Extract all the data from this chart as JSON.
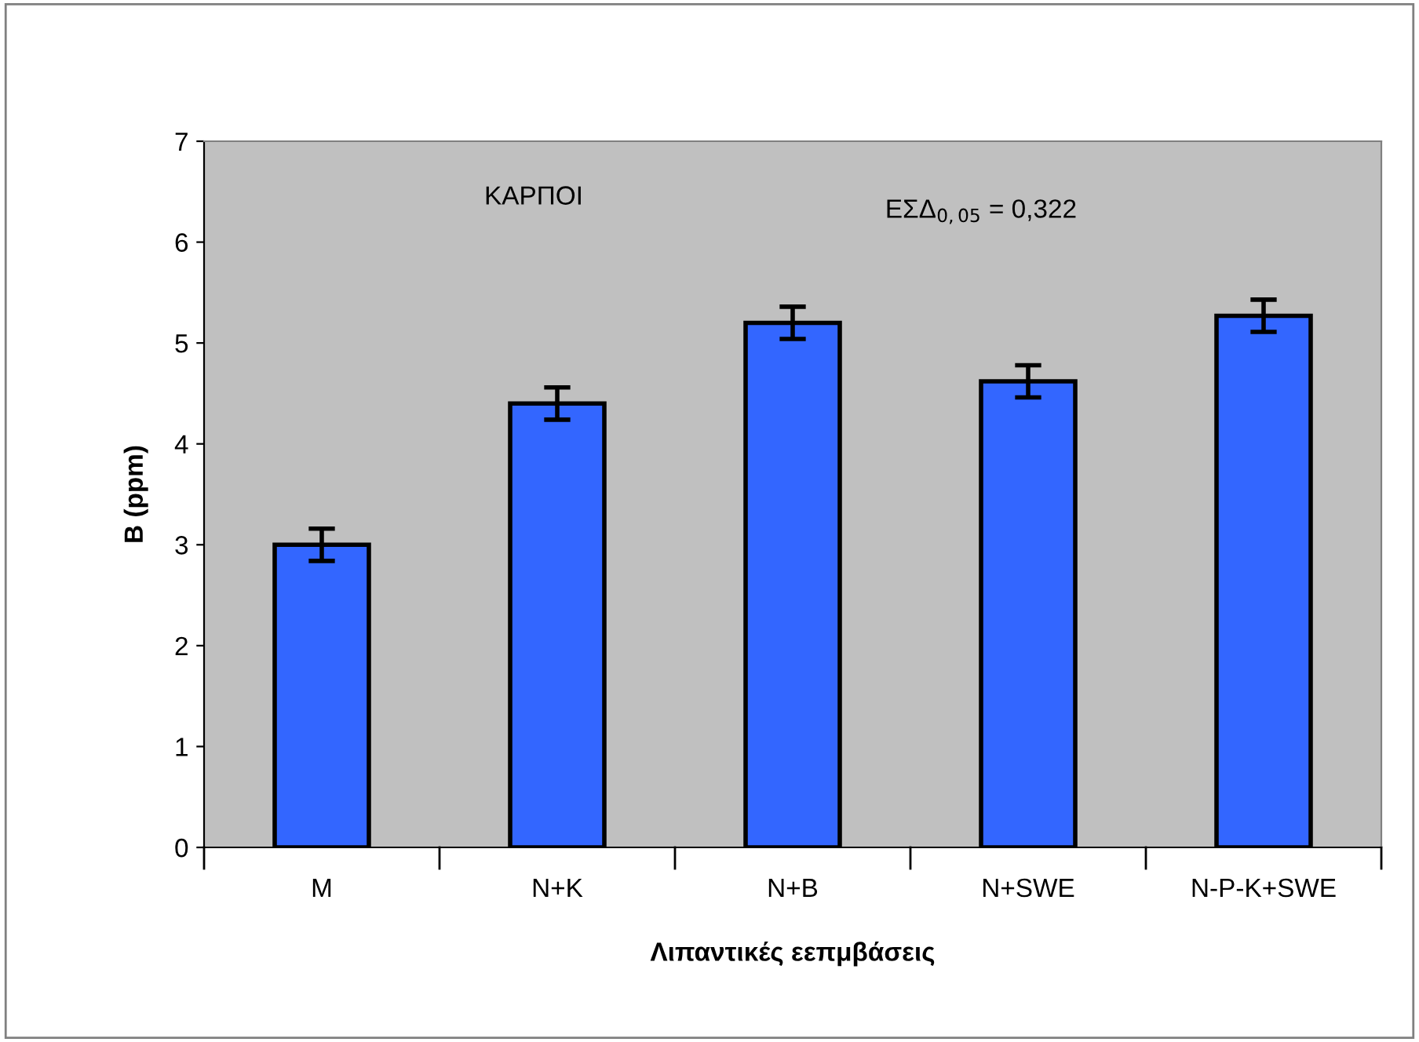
{
  "chart_data": {
    "type": "bar",
    "xlabel": "Λιπαντικές εεπμβάσεις",
    "ylabel": "B (ppm)",
    "categories": [
      "M",
      "N+K",
      "N+B",
      "N+SWE",
      "N-P-K+SWE"
    ],
    "values": [
      3.0,
      4.4,
      5.2,
      4.62,
      5.27
    ],
    "errors": [
      0.16,
      0.16,
      0.16,
      0.16,
      0.16
    ],
    "color": "#3366ff",
    "ylim": [
      0,
      7
    ],
    "yticks": [
      0,
      1,
      2,
      3,
      4,
      5,
      6,
      7
    ],
    "grid": false,
    "legend": false,
    "annotations": [
      "ΚΑΡΠΟΙ",
      "ΕΣΔ$_{0,05}$ = 0,322"
    ]
  }
}
